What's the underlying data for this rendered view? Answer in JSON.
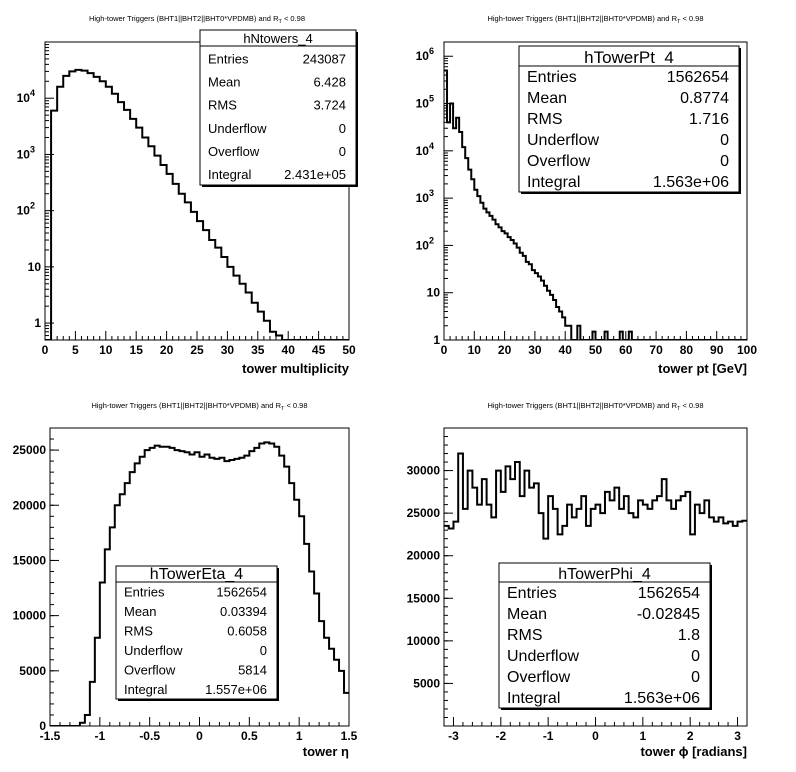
{
  "title": "High-tower Triggers (BHT1||BHT2||BHT0*VPDMB) and R",
  "title_sub": "T",
  "title_tail": " < 0.98",
  "chart_data": [
    {
      "type": "histogram",
      "name": "hNtowers_4",
      "xlabel": "tower multiplicity",
      "xlim": [
        0,
        50
      ],
      "ylog": true,
      "ylim": [
        0.5,
        100000
      ],
      "xticks": [
        "0",
        "5",
        "10",
        "15",
        "20",
        "25",
        "30",
        "35",
        "40",
        "45",
        "50"
      ],
      "yticks": [
        {
          "v": 1,
          "base": "1",
          "exp": ""
        },
        {
          "v": 10,
          "base": "10",
          "exp": ""
        },
        {
          "v": 100,
          "base": "10",
          "exp": "2"
        },
        {
          "v": 1000,
          "base": "10",
          "exp": "3"
        },
        {
          "v": 10000,
          "base": "10",
          "exp": "4"
        }
      ],
      "bin_start": 0,
      "bin_width": 1,
      "values": [
        0.5,
        6000,
        16000,
        25000,
        30000,
        32000,
        31000,
        28000,
        24000,
        20000,
        16000,
        12000,
        8500,
        6200,
        4300,
        3000,
        2000,
        1400,
        950,
        650,
        450,
        300,
        200,
        140,
        95,
        65,
        45,
        30,
        22,
        15,
        10,
        7,
        5,
        3.5,
        2.3,
        1.6,
        1.1,
        0.7,
        0.6,
        0.5,
        0.5,
        0.5,
        0.5,
        0.5,
        0.5,
        0.5,
        0.5,
        0.5,
        0.5,
        0.5
      ],
      "stats": {
        "title": "hNtowers_4",
        "rows": [
          [
            "Entries",
            "243087"
          ],
          [
            "Mean",
            "6.428"
          ],
          [
            "RMS",
            "3.724"
          ],
          [
            "Underflow",
            "0"
          ],
          [
            "Overflow",
            "0"
          ],
          [
            "Integral",
            "2.431e+05"
          ]
        ]
      }
    },
    {
      "type": "histogram",
      "name": "hTowerPt_4",
      "xlabel": "tower pt [GeV]",
      "xlim": [
        0,
        100
      ],
      "ylog": true,
      "ylim": [
        1,
        2000000
      ],
      "xticks": [
        "0",
        "10",
        "20",
        "30",
        "40",
        "50",
        "60",
        "70",
        "80",
        "90",
        "100"
      ],
      "yticks": [
        {
          "v": 1,
          "base": "1",
          "exp": ""
        },
        {
          "v": 10,
          "base": "10",
          "exp": ""
        },
        {
          "v": 100,
          "base": "10",
          "exp": "2"
        },
        {
          "v": 1000,
          "base": "10",
          "exp": "3"
        },
        {
          "v": 10000,
          "base": "10",
          "exp": "4"
        },
        {
          "v": 100000,
          "base": "10",
          "exp": "5"
        },
        {
          "v": 1000000,
          "base": "10",
          "exp": "6"
        }
      ],
      "bin_start": 0,
      "bin_width": 1,
      "values": [
        500000,
        40000,
        100000,
        30000,
        50000,
        25000,
        12000,
        7000,
        4000,
        2500,
        1500,
        1100,
        800,
        600,
        500,
        420,
        350,
        280,
        240,
        200,
        180,
        150,
        130,
        110,
        90,
        70,
        60,
        45,
        40,
        30,
        26,
        22,
        18,
        14,
        11,
        9,
        7,
        5,
        4,
        3,
        2,
        2,
        1,
        1,
        2,
        1,
        1,
        1,
        1,
        1.5,
        1,
        1,
        1,
        1.5,
        1,
        1,
        1,
        1,
        1.5,
        1,
        1,
        1.5,
        1,
        1,
        1,
        1,
        1,
        1,
        1,
        1,
        1,
        1,
        1,
        1,
        1,
        1,
        1,
        1,
        1,
        1,
        1,
        1,
        1,
        1,
        1,
        1,
        1,
        1,
        1,
        1,
        1,
        1,
        1,
        1,
        1,
        1,
        1,
        1,
        1,
        1
      ],
      "stats": {
        "title": "hTowerPt_4",
        "rows": [
          [
            "Entries",
            "1562654"
          ],
          [
            "Mean",
            "0.8774"
          ],
          [
            "RMS",
            "1.716"
          ],
          [
            "Underflow",
            "0"
          ],
          [
            "Overflow",
            "0"
          ],
          [
            "Integral",
            "1.563e+06"
          ]
        ]
      }
    },
    {
      "type": "histogram",
      "name": "hTowerEta_4",
      "xlabel": "tower η",
      "xlim": [
        -1.5,
        1.5
      ],
      "ylog": false,
      "ylim": [
        0,
        27000
      ],
      "xticks": [
        "-1.5",
        "-1",
        "-0.5",
        "0",
        "0.5",
        "1",
        "1.5"
      ],
      "yticks": [
        {
          "v": 0,
          "base": "0",
          "exp": ""
        },
        {
          "v": 5000,
          "base": "5000",
          "exp": ""
        },
        {
          "v": 10000,
          "base": "10000",
          "exp": ""
        },
        {
          "v": 15000,
          "base": "15000",
          "exp": ""
        },
        {
          "v": 20000,
          "base": "20000",
          "exp": ""
        },
        {
          "v": 25000,
          "base": "25000",
          "exp": ""
        }
      ],
      "bin_start": -1.5,
      "bin_width": 0.05,
      "values": [
        0,
        0,
        0,
        0,
        0,
        0,
        300,
        1000,
        4000,
        8000,
        13000,
        16000,
        18000,
        20000,
        21000,
        22000,
        23000,
        23800,
        24400,
        25000,
        25200,
        25400,
        25300,
        25300,
        25200,
        25000,
        24900,
        24800,
        24600,
        24800,
        24400,
        24600,
        24300,
        24200,
        24300,
        24000,
        24100,
        24200,
        24300,
        24500,
        24900,
        25200,
        25600,
        25700,
        25600,
        25300,
        24500,
        23500,
        22000,
        20500,
        19000,
        16500,
        14000,
        12000,
        9500,
        8000,
        7000,
        6000,
        5000,
        3000
      ],
      "stats": {
        "title": "hTowerEta_4",
        "rows": [
          [
            "Entries",
            "1562654"
          ],
          [
            "Mean",
            "0.03394"
          ],
          [
            "RMS",
            "0.6058"
          ],
          [
            "Underflow",
            "0"
          ],
          [
            "Overflow",
            "5814"
          ],
          [
            "Integral",
            "1.557e+06"
          ]
        ]
      }
    },
    {
      "type": "histogram",
      "name": "hTowerPhi_4",
      "xlabel": "tower ϕ [radians]",
      "xlim": [
        -3.2,
        3.2
      ],
      "ylog": false,
      "ylim": [
        0,
        35000
      ],
      "xticks": [
        "-3",
        "-2",
        "-1",
        "0",
        "1",
        "2",
        "3"
      ],
      "xtick_values": [
        -3,
        -2,
        -1,
        0,
        1,
        2,
        3
      ],
      "yticks": [
        {
          "v": 5000,
          "base": "5000",
          "exp": ""
        },
        {
          "v": 10000,
          "base": "10000",
          "exp": ""
        },
        {
          "v": 15000,
          "base": "15000",
          "exp": ""
        },
        {
          "v": 20000,
          "base": "20000",
          "exp": ""
        },
        {
          "v": 25000,
          "base": "25000",
          "exp": ""
        },
        {
          "v": 30000,
          "base": "30000",
          "exp": ""
        }
      ],
      "bin_start": -3.2,
      "bin_width": 0.1,
      "values": [
        23500,
        23200,
        24000,
        32000,
        25500,
        30000,
        28000,
        26000,
        29000,
        26000,
        24500,
        30000,
        27500,
        30500,
        29000,
        31000,
        27000,
        30000,
        28000,
        28500,
        25000,
        22000,
        27000,
        25500,
        22500,
        23500,
        26000,
        24500,
        25500,
        27000,
        23500,
        25500,
        26000,
        25000,
        27500,
        26500,
        28000,
        25500,
        27000,
        25000,
        24500,
        26500,
        26000,
        25500,
        26500,
        27000,
        29000,
        26500,
        25500,
        26500,
        27000,
        27500,
        22500,
        26000,
        25000,
        26500,
        24500,
        24000,
        24500,
        23800,
        24000,
        23500,
        24000,
        24100
      ],
      "stats": {
        "title": "hTowerPhi_4",
        "rows": [
          [
            "Entries",
            "1562654"
          ],
          [
            "Mean",
            "-0.02845"
          ],
          [
            "RMS",
            "1.8"
          ],
          [
            "Underflow",
            "0"
          ],
          [
            "Overflow",
            "0"
          ],
          [
            "Integral",
            "1.563e+06"
          ]
        ]
      }
    }
  ]
}
